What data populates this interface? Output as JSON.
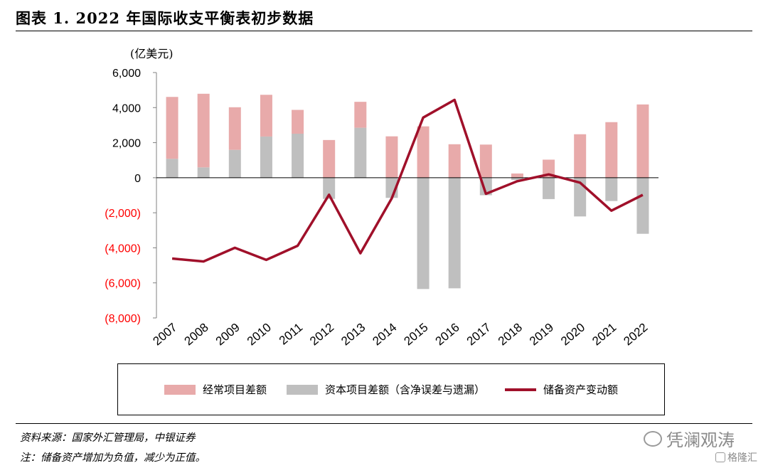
{
  "header": {
    "title": "图表 1. 2022 年国际收支平衡表初步数据"
  },
  "footer": {
    "source": "资料来源：国家外汇管理局，中银证券",
    "note": "注：储备资产增加为负值，减少为正值。"
  },
  "watermark": {
    "text": "凭澜观涛",
    "brand": "格隆汇"
  },
  "colors": {
    "current": "#e8aaaa",
    "capital": "#bfbfbf",
    "reserve": "#a0102a",
    "negative_tick": "#ff0000"
  },
  "chart_data": {
    "type": "bar",
    "unit_label": "(亿美元)",
    "categories": [
      "2007",
      "2008",
      "2009",
      "2010",
      "2011",
      "2012",
      "2013",
      "2014",
      "2015",
      "2016",
      "2017",
      "2018",
      "2019",
      "2020",
      "2021",
      "2022"
    ],
    "ylim": [
      -8000,
      6000
    ],
    "yticks": [
      6000,
      4000,
      2000,
      0,
      -2000,
      -4000,
      -6000,
      -8000
    ],
    "ytick_labels": [
      "6,000",
      "4,000",
      "2,000",
      "0",
      "(2,000)",
      "(4,000)",
      "(6,000)",
      "(8,000)"
    ],
    "series": [
      {
        "name": "经常项目差额",
        "type": "bar",
        "values": [
          3530,
          4200,
          2430,
          2380,
          1360,
          2150,
          1480,
          2360,
          2930,
          1910,
          1890,
          240,
          1030,
          2480,
          3170,
          4180
        ]
      },
      {
        "name": "资本项目差额（含净误差与遗漏）",
        "type": "bar",
        "values": [
          1080,
          590,
          1590,
          2350,
          2510,
          -1210,
          2850,
          -1150,
          -6350,
          -6310,
          -1000,
          -130,
          -1220,
          -2210,
          -1330,
          -3200
        ]
      },
      {
        "name": "储备资产变动额",
        "type": "line",
        "values": [
          -4610,
          -4780,
          -4000,
          -4690,
          -3880,
          -970,
          -4310,
          -1180,
          3430,
          4440,
          -920,
          -200,
          190,
          -280,
          -1880,
          -980
        ]
      }
    ],
    "grid": false,
    "legend_position": "bottom"
  }
}
